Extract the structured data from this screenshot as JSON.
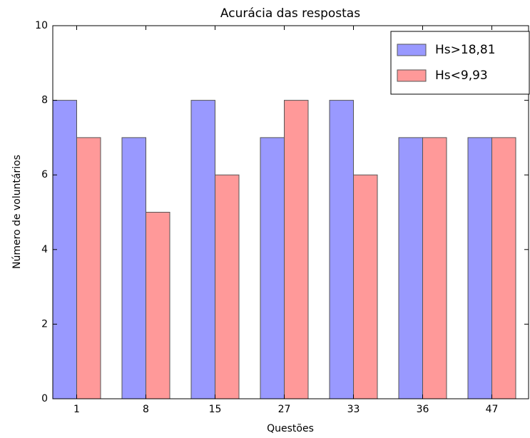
{
  "chart_data": {
    "type": "bar",
    "title": "Acurácia das respostas",
    "x_label": "Questões",
    "y_label": "Número de voluntários",
    "categories": [
      "1",
      "8",
      "15",
      "27",
      "33",
      "36",
      "47"
    ],
    "series": [
      {
        "name": "Hs>18,81",
        "color": "#9999ff",
        "values": [
          8,
          7,
          8,
          7,
          8,
          7,
          7
        ]
      },
      {
        "name": "Hs<9,93",
        "color": "#ff9999",
        "values": [
          7,
          5,
          6,
          8,
          6,
          7,
          7
        ]
      }
    ],
    "ylim": [
      0,
      10
    ],
    "yticks": [
      0,
      2,
      4,
      6,
      8,
      10
    ],
    "legend": "upper right"
  }
}
